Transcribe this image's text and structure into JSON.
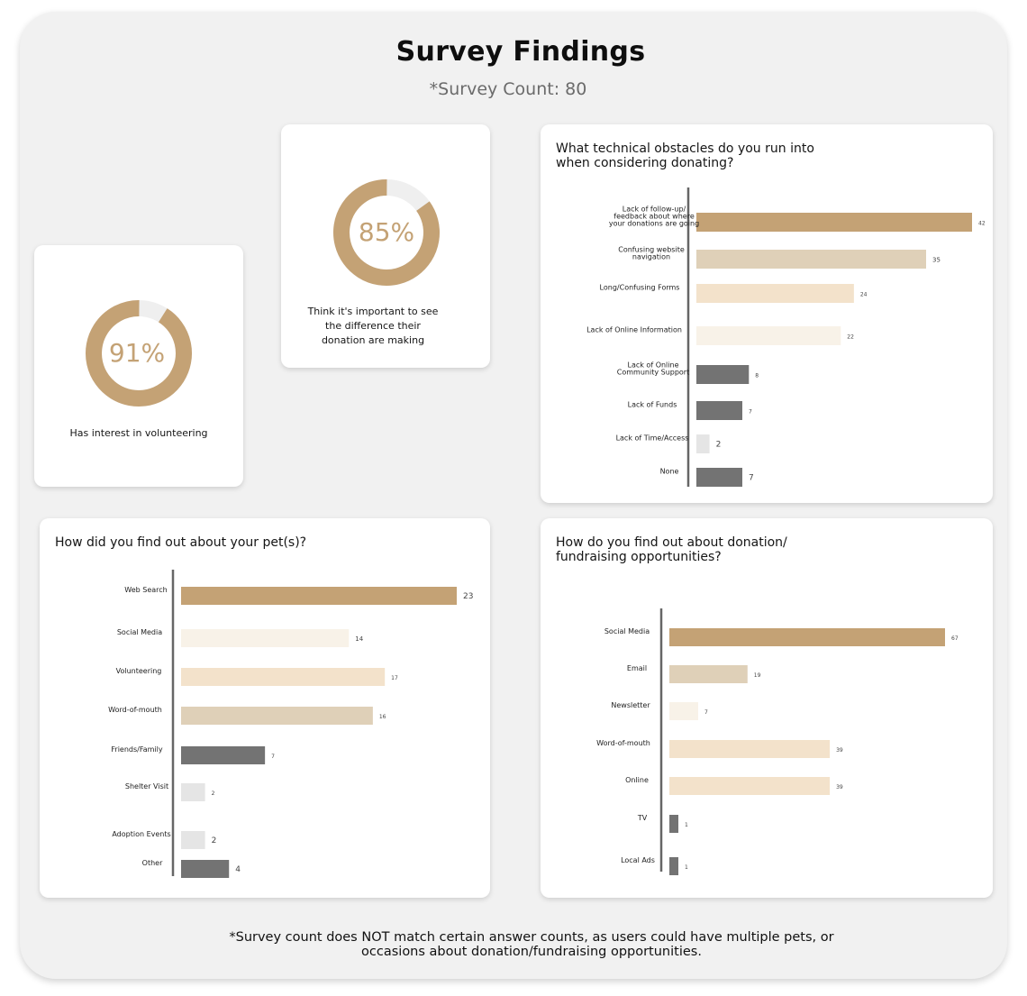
{
  "header": {
    "title": "Survey Findings",
    "subtitle": "*Survey Count: 80"
  },
  "donuts": [
    {
      "percent": 91,
      "label": "91%",
      "caption": "Has interest in volunteering"
    },
    {
      "percent": 85,
      "label": "85%",
      "caption": "Think it's important to see\nthe difference their\ndonation are making"
    }
  ],
  "colors": {
    "accent": "#c4a275",
    "donut_remainder": "#efefef",
    "axis": "#666666"
  },
  "chart_data": [
    {
      "type": "bar",
      "orientation": "horizontal",
      "title": "What technical obstacles do you run into\nwhen considering donating?",
      "categories": [
        "Lack of follow-up/\nfeedback about where\nyour donations are going",
        "Confusing website\nnavigation",
        "Long/Confusing Forms",
        "Lack of Online Information",
        "Lack of Online\nCommunity Support",
        "Lack of Funds",
        "Lack of Time/Access",
        "None"
      ],
      "values": [
        42,
        35,
        24,
        22,
        8,
        7,
        2,
        7
      ],
      "value_labels": [
        "42",
        "35",
        "24",
        "22",
        "8",
        "7",
        "2",
        "7"
      ],
      "bar_colors": [
        "#c4a275",
        "#dfd0b8",
        "#f3e2cb",
        "#f8f2e8",
        "#737373",
        "#737373",
        "#e5e5e5",
        "#737373"
      ]
    },
    {
      "type": "bar",
      "orientation": "horizontal",
      "title": "How did you find out about your pet(s)?",
      "categories": [
        "Web Search",
        "Social Media",
        "Volunteering",
        "Word-of-mouth",
        "Friends/Family",
        "Shelter Visit",
        "Adoption Events",
        "Other"
      ],
      "values": [
        23,
        14,
        17,
        16,
        7,
        2,
        2,
        4
      ],
      "value_labels": [
        "23",
        "14",
        "17",
        "16",
        "7",
        "2",
        "2",
        "4"
      ],
      "bar_colors": [
        "#c4a275",
        "#f8f2e8",
        "#f3e2cb",
        "#dfd0b8",
        "#737373",
        "#e5e5e5",
        "#e5e5e5",
        "#737373"
      ]
    },
    {
      "type": "bar",
      "orientation": "horizontal",
      "title": "How do you find out about donation/\nfundraising opportunities?",
      "categories": [
        "Social Media",
        "Email",
        "Newsletter",
        "Word-of-mouth",
        "Online",
        "TV",
        "Local Ads"
      ],
      "values": [
        67,
        19,
        7,
        39,
        39,
        1,
        1
      ],
      "value_labels": [
        "67",
        "19",
        "7",
        "39",
        "39",
        "1",
        "1"
      ],
      "bar_colors": [
        "#c4a275",
        "#dfd0b8",
        "#f8f2e8",
        "#f3e2cb",
        "#f3e2cb",
        "#737373",
        "#737373"
      ]
    }
  ],
  "footnote": "*Survey count does NOT match certain answer counts, as users could have multiple pets, or\noccasions about donation/fundraising opportunities."
}
